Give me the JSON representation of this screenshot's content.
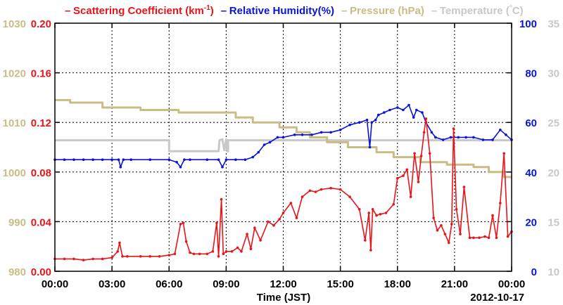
{
  "chart_data": {
    "type": "line",
    "legend": [
      {
        "key": "scattering",
        "label_main": "Scattering Coefficient (km",
        "label_sup": "-1",
        "label_end": ")",
        "color": "#e8141a"
      },
      {
        "key": "rh",
        "label_main": "Relative Humidity(%)",
        "color": "#0a14d8"
      },
      {
        "key": "pressure",
        "label_main": "Pressure (hPa)",
        "color": "#c8bd84"
      },
      {
        "key": "temperature",
        "label_main": "Temperature (",
        "label_deg": "°",
        "label_end": "C)",
        "color": "#c8c8c8"
      }
    ],
    "xlabel": "Time (JST)",
    "date_label": "2012-10-17",
    "x_range": [
      "00:00",
      "00:00"
    ],
    "x_ticks": [
      "00:00",
      "03:00",
      "06:00",
      "09:00",
      "12:00",
      "15:00",
      "18:00",
      "21:00",
      "00:00"
    ],
    "axes": {
      "pressure": {
        "range": [
          980,
          1030
        ],
        "ticks": [
          "980",
          "990",
          "1000",
          "1010",
          "1020",
          "1030"
        ],
        "color": "#c8bd84"
      },
      "scattering": {
        "range": [
          0,
          0.2
        ],
        "ticks": [
          "0.00",
          "0.04",
          "0.08",
          "0.12",
          "0.16",
          "0.20"
        ],
        "color": "#e8141a"
      },
      "rh": {
        "range": [
          0,
          100
        ],
        "ticks": [
          "0",
          "20",
          "40",
          "60",
          "80",
          "100"
        ],
        "color": "#0a14d8"
      },
      "temperature": {
        "range": [
          10,
          35
        ],
        "ticks": [
          "10",
          "15",
          "20",
          "25",
          "30",
          "35"
        ],
        "color": "#c8c8c8"
      }
    },
    "grid": true,
    "series": [
      {
        "name": "Scattering Coefficient",
        "axis": "scattering",
        "color": "#e8141a",
        "markers": true,
        "x": [
          0,
          0.5,
          1,
          1.5,
          2,
          2.5,
          3,
          3.3,
          3.4,
          3.55,
          3.8,
          4.5,
          5,
          5.5,
          6,
          6.3,
          6.6,
          6.75,
          6.9,
          7.1,
          7.3,
          7.6,
          8,
          8.3,
          8.5,
          8.6,
          8.75,
          8.85,
          9,
          9.3,
          9.6,
          9.8,
          10.1,
          10.3,
          10.5,
          10.8,
          11.2,
          11.5,
          11.8,
          12,
          12.4,
          12.7,
          13,
          13.4,
          13.7,
          14,
          14.5,
          15,
          15.5,
          16,
          16.3,
          16.5,
          16.6,
          16.7,
          16.9,
          17.1,
          17.4,
          17.8,
          18,
          18.3,
          18.5,
          18.7,
          18.9,
          19.1,
          19.25,
          19.4,
          19.5,
          19.7,
          19.9,
          20.1,
          20.3,
          20.5,
          20.7,
          20.85,
          20.95,
          21.1,
          21.3,
          21.5,
          21.8,
          22,
          22.3,
          22.6,
          22.8,
          23,
          23.2,
          23.4,
          23.6,
          23.8,
          24
        ],
        "y": [
          0.01,
          0.01,
          0.01,
          0.009,
          0.01,
          0.01,
          0.011,
          0.016,
          0.023,
          0.012,
          0.012,
          0.012,
          0.012,
          0.012,
          0.013,
          0.014,
          0.038,
          0.039,
          0.024,
          0.015,
          0.014,
          0.014,
          0.014,
          0.016,
          0.039,
          0.012,
          0.058,
          0.014,
          0.016,
          0.016,
          0.019,
          0.016,
          0.03,
          0.018,
          0.035,
          0.025,
          0.04,
          0.037,
          0.042,
          0.047,
          0.055,
          0.043,
          0.06,
          0.065,
          0.064,
          0.066,
          0.067,
          0.066,
          0.06,
          0.05,
          0.025,
          0.047,
          0.017,
          0.05,
          0.045,
          0.046,
          0.047,
          0.054,
          0.075,
          0.077,
          0.082,
          0.06,
          0.095,
          0.072,
          0.093,
          0.112,
          0.123,
          0.095,
          0.043,
          0.033,
          0.037,
          0.03,
          0.023,
          0.038,
          0.115,
          0.05,
          0.03,
          0.068,
          0.027,
          0.027,
          0.027,
          0.028,
          0.027,
          0.045,
          0.027,
          0.055,
          0.095,
          0.028,
          0.032
        ]
      },
      {
        "name": "Relative Humidity",
        "axis": "rh",
        "color": "#0a14d8",
        "markers": true,
        "x": [
          0,
          0.5,
          1,
          1.5,
          2,
          2.5,
          3,
          3.35,
          3.45,
          3.6,
          4,
          5,
          6,
          6.4,
          6.6,
          6.8,
          7.1,
          8,
          8.6,
          8.8,
          9,
          9.5,
          10,
          10.4,
          10.7,
          11,
          11.3,
          11.7,
          12,
          12.6,
          13,
          13.5,
          14,
          14.5,
          15,
          15.5,
          16,
          16.4,
          16.55,
          16.65,
          16.85,
          17,
          17.3,
          17.6,
          18,
          18.3,
          18.6,
          18.85,
          19,
          19.3,
          19.5,
          19.8,
          20,
          20.4,
          20.8,
          21.2,
          21.6,
          22,
          22.5,
          23,
          23.4,
          23.7,
          24
        ],
        "y": [
          45,
          45,
          45,
          45,
          45,
          45,
          45,
          45,
          42,
          45,
          45,
          45,
          45,
          44,
          42,
          45,
          45,
          45,
          45,
          42,
          45,
          45,
          45,
          46,
          48,
          51,
          52,
          54,
          54,
          55,
          55,
          55,
          56,
          56,
          57,
          59,
          60,
          61,
          50,
          60,
          61,
          63,
          64,
          65,
          66,
          65,
          67,
          62,
          65,
          64,
          60,
          56,
          54,
          53,
          54,
          54,
          54,
          54,
          53,
          53,
          57,
          55,
          53
        ]
      },
      {
        "name": "Pressure",
        "axis": "pressure",
        "color": "#c8bd84",
        "markers": false,
        "x": [
          0,
          0.8,
          0.8,
          2.5,
          2.5,
          4.5,
          4.5,
          6.5,
          6.5,
          9.5,
          9.5,
          10.4,
          10.4,
          11.8,
          11.8,
          12.7,
          12.7,
          13.4,
          13.4,
          14.3,
          14.3,
          15.4,
          15.4,
          16.9,
          16.9,
          17.8,
          17.8,
          19.2,
          19.2,
          20.6,
          20.6,
          22,
          22,
          22.8,
          22.8,
          23.6,
          23.6,
          24
        ],
        "y": [
          1014.5,
          1014.5,
          1014,
          1014,
          1013,
          1013,
          1012.5,
          1012.5,
          1012,
          1012,
          1011,
          1011,
          1010,
          1010,
          1009,
          1009,
          1008,
          1008,
          1007,
          1007,
          1006,
          1006,
          1005,
          1005,
          1004,
          1004,
          1003,
          1003,
          1002,
          1002,
          1001.5,
          1001.5,
          1001,
          1001,
          1000,
          1000,
          999,
          999
        ]
      },
      {
        "name": "Temperature",
        "axis": "temperature",
        "color": "#c8c8c8",
        "markers": false,
        "x": [
          0,
          6,
          6,
          8.6,
          8.65,
          8.8,
          8.9,
          9.0,
          9.05,
          9.1,
          9.1,
          24
        ],
        "y": [
          23.2,
          23.2,
          22.1,
          22.1,
          23.2,
          23.3,
          22.2,
          23.3,
          22.1,
          22.1,
          23.2,
          23.2
        ]
      }
    ]
  }
}
